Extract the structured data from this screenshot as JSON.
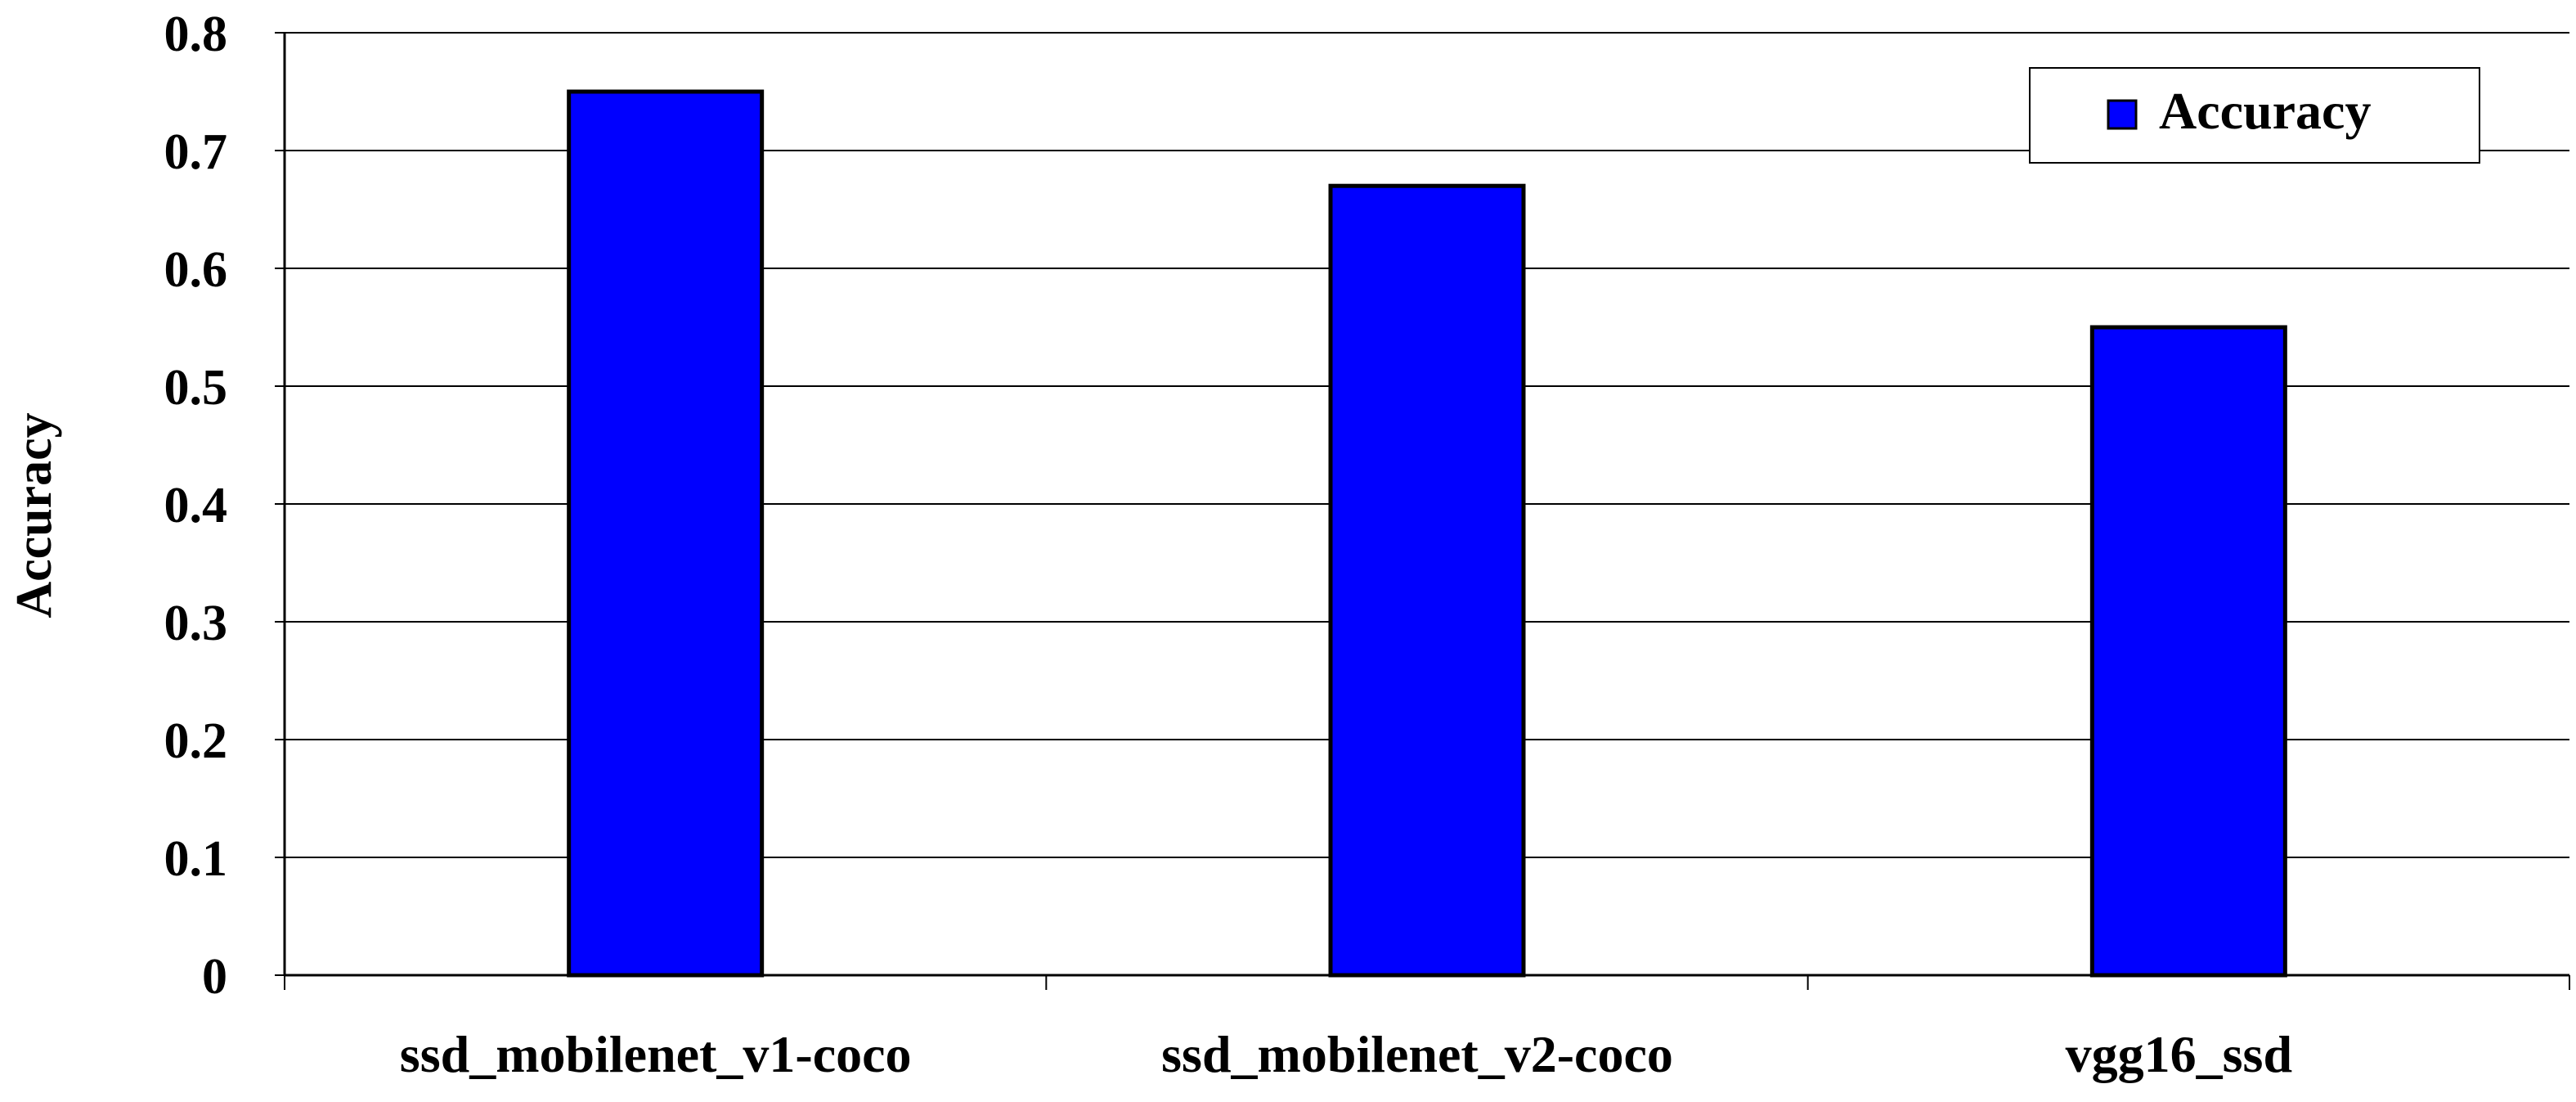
{
  "chart_data": {
    "type": "bar",
    "categories": [
      "ssd_mobilenet_v1-coco",
      "ssd_mobilenet_v2-coco",
      "vgg16_ssd"
    ],
    "series": [
      {
        "name": "Accuracy",
        "values": [
          0.75,
          0.67,
          0.55
        ],
        "color": "#0000FF"
      }
    ],
    "title": "",
    "xlabel": "",
    "ylabel": "Accuracy",
    "ylim": [
      0,
      0.8
    ],
    "yticks": [
      "0",
      "0.1",
      "0.2",
      "0.3",
      "0.4",
      "0.5",
      "0.6",
      "0.7",
      "0.8"
    ],
    "grid": "horizontal",
    "legend": "top-right",
    "colors": {
      "bar": "#0000FF",
      "bar_outline": "#000000",
      "grid": "#000000",
      "background": "#FFFFFF"
    }
  }
}
